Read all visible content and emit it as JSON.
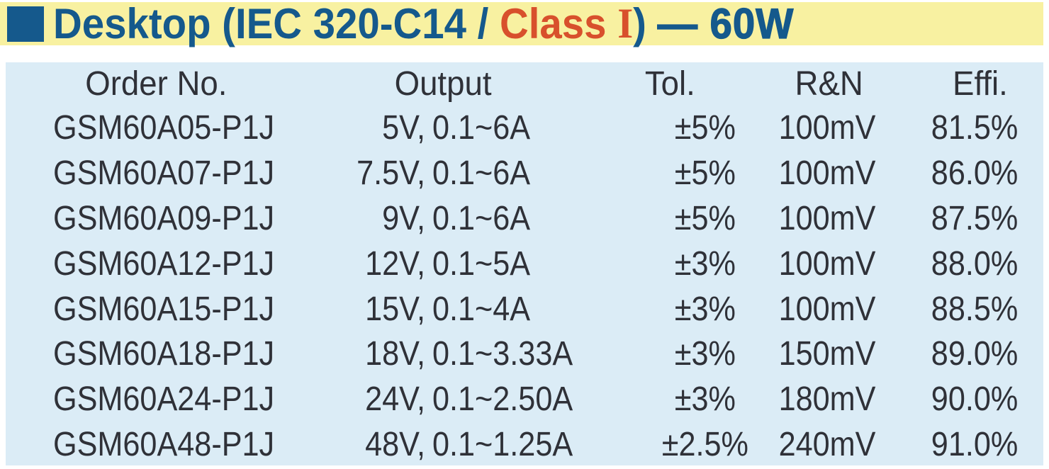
{
  "header": {
    "title": {
      "part_blue": "Desktop (IEC 320-C14 / ",
      "part_red": "Class ",
      "part_red_serif": "I",
      "part_paren": ") ",
      "separator": "— ",
      "wattage": "60W"
    },
    "colors": {
      "band_bg": "#F8F1A1",
      "blue": "#15598C",
      "red": "#D8502C"
    }
  },
  "table": {
    "colors": {
      "bg": "#DBECF6",
      "text": "#2F3138"
    },
    "columns": [
      "Order No.",
      "Output",
      "Tol.",
      "R&N",
      "Effi."
    ],
    "rows": [
      {
        "order_no": "GSM60A05-P1J",
        "voltage": "5V,",
        "current": "0.1~6A",
        "tol": "±5%",
        "rn": "100mV",
        "effi": "81.5%"
      },
      {
        "order_no": "GSM60A07-P1J",
        "voltage": "7.5V,",
        "current": "0.1~6A",
        "tol": "±5%",
        "rn": "100mV",
        "effi": "86.0%"
      },
      {
        "order_no": "GSM60A09-P1J",
        "voltage": "9V,",
        "current": "0.1~6A",
        "tol": "±5%",
        "rn": "100mV",
        "effi": "87.5%"
      },
      {
        "order_no": "GSM60A12-P1J",
        "voltage": "12V,",
        "current": "0.1~5A",
        "tol": "±3%",
        "rn": "100mV",
        "effi": "88.0%"
      },
      {
        "order_no": "GSM60A15-P1J",
        "voltage": "15V,",
        "current": "0.1~4A",
        "tol": "±3%",
        "rn": "100mV",
        "effi": "88.5%"
      },
      {
        "order_no": "GSM60A18-P1J",
        "voltage": "18V,",
        "current": "0.1~3.33A",
        "tol": "±3%",
        "rn": "150mV",
        "effi": "89.0%"
      },
      {
        "order_no": "GSM60A24-P1J",
        "voltage": "24V,",
        "current": "0.1~2.50A",
        "tol": "±3%",
        "rn": "180mV",
        "effi": "90.0%"
      },
      {
        "order_no": "GSM60A48-P1J",
        "voltage": "48V,",
        "current": "0.1~1.25A",
        "tol": "±2.5%",
        "rn": "240mV",
        "effi": "91.0%"
      }
    ]
  }
}
